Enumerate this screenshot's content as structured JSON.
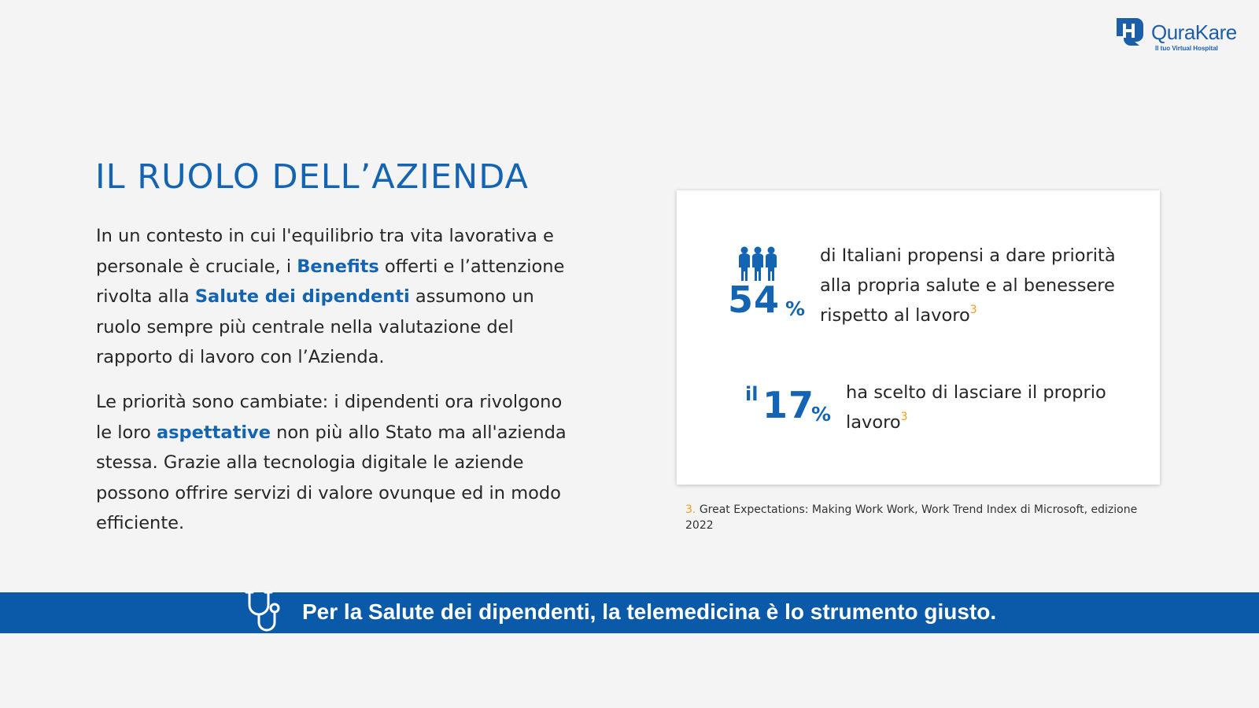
{
  "brand": {
    "name": "QuraKare",
    "tagline": "Il tuo Virtual Hospital",
    "color": "#1c5fa8",
    "icon": "qurakare-logo-icon"
  },
  "slide": {
    "title": "IL RUOLO DELL’AZIENDA",
    "accent_color": "#1464b4",
    "paragraph1": {
      "t1": "In un contesto in cui l'equilibrio tra vita lavorativa e personale è cruciale, i ",
      "h1": "Benefits",
      "t2": " offerti e l’attenzione rivolta alla ",
      "h2": "Salute dei dipendenti",
      "t3": " assumono un ruolo sempre più centrale nella valutazione del rapporto di lavoro con l’Azienda."
    },
    "paragraph2": {
      "t1": "Le priorità sono cambiate: i dipendenti ora rivolgono le loro ",
      "h1": "aspettative",
      "t2": " non più allo Stato ma all'azienda stessa. Grazie alla tecnologia digitale le aziende possono offrire servizi di valore ovunque ed in modo efficiente."
    }
  },
  "stats": {
    "stat1": {
      "icon": "people-group-icon",
      "value": "54",
      "unit": "%",
      "text": "di Italiani propensi a dare priorità alla propria salute e al benessere rispetto al lavoro",
      "ref": "3"
    },
    "stat2": {
      "prefix": "il",
      "value": "17",
      "unit": "%",
      "text": "ha scelto di lasciare il proprio lavoro",
      "ref": "3"
    }
  },
  "footnote": {
    "number": "3.",
    "text": "Great Expectations: Making Work Work, Work Trend Index di Microsoft, edizione 2022"
  },
  "banner": {
    "icon": "stethoscope-icon",
    "text": "Per la Salute dei dipendenti, la telemedicina è lo strumento giusto.",
    "color": "#0b5aa9"
  }
}
